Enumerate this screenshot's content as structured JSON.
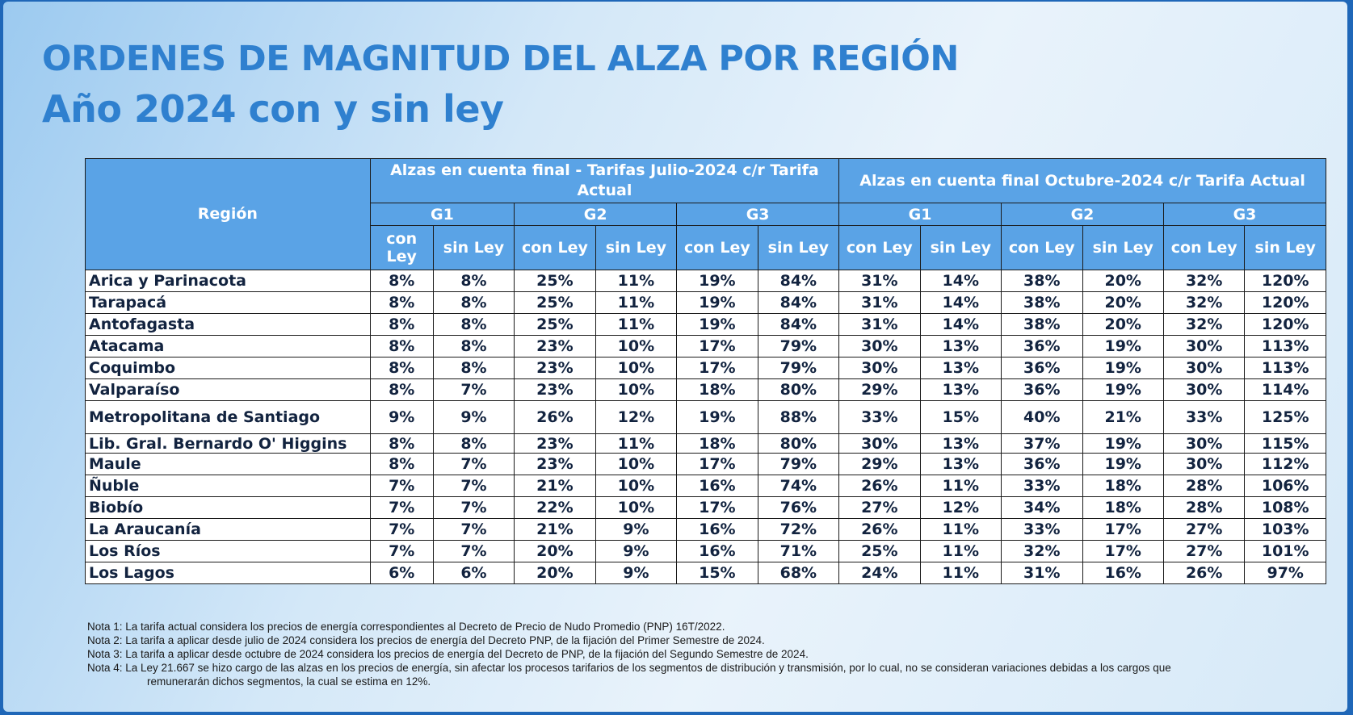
{
  "title": {
    "line1": "ORDENES DE MAGNITUD DEL ALZA POR REGIÓN",
    "line2": "Año 2024 con y sin ley"
  },
  "table": {
    "region_header": "Región",
    "group_july": "Alzas en cuenta final - Tarifas Julio-2024 c/r Tarifa Actual",
    "group_october": "Alzas en cuenta final Octubre-2024 c/r Tarifa Actual",
    "sub_groups": [
      "G1",
      "G2",
      "G3",
      "G1",
      "G2",
      "G3"
    ],
    "con_ley": "con Ley",
    "sin_ley": "sin Ley",
    "rows": [
      {
        "region": "Arica y Parinacota",
        "values": [
          "8%",
          "8%",
          "25%",
          "11%",
          "19%",
          "84%",
          "31%",
          "14%",
          "38%",
          "20%",
          "32%",
          "120%"
        ]
      },
      {
        "region": "Tarapacá",
        "values": [
          "8%",
          "8%",
          "25%",
          "11%",
          "19%",
          "84%",
          "31%",
          "14%",
          "38%",
          "20%",
          "32%",
          "120%"
        ]
      },
      {
        "region": "Antofagasta",
        "values": [
          "8%",
          "8%",
          "25%",
          "11%",
          "19%",
          "84%",
          "31%",
          "14%",
          "38%",
          "20%",
          "32%",
          "120%"
        ]
      },
      {
        "region": "Atacama",
        "values": [
          "8%",
          "8%",
          "23%",
          "10%",
          "17%",
          "79%",
          "30%",
          "13%",
          "36%",
          "19%",
          "30%",
          "113%"
        ]
      },
      {
        "region": "Coquimbo",
        "values": [
          "8%",
          "8%",
          "23%",
          "10%",
          "17%",
          "79%",
          "30%",
          "13%",
          "36%",
          "19%",
          "30%",
          "113%"
        ]
      },
      {
        "region": "Valparaíso",
        "values": [
          "8%",
          "7%",
          "23%",
          "10%",
          "18%",
          "80%",
          "29%",
          "13%",
          "36%",
          "19%",
          "30%",
          "114%"
        ]
      },
      {
        "region": "Metropolitana de Santiago",
        "values": [
          "9%",
          "9%",
          "26%",
          "12%",
          "19%",
          "88%",
          "33%",
          "15%",
          "40%",
          "21%",
          "33%",
          "125%"
        ]
      },
      {
        "region": "Lib. Gral. Bernardo O' Higgins",
        "values": [
          "8%",
          "8%",
          "23%",
          "11%",
          "18%",
          "80%",
          "30%",
          "13%",
          "37%",
          "19%",
          "30%",
          "115%"
        ]
      },
      {
        "region": "Maule",
        "values": [
          "8%",
          "7%",
          "23%",
          "10%",
          "17%",
          "79%",
          "29%",
          "13%",
          "36%",
          "19%",
          "30%",
          "112%"
        ]
      },
      {
        "region": "Ñuble",
        "values": [
          "7%",
          "7%",
          "21%",
          "10%",
          "16%",
          "74%",
          "26%",
          "11%",
          "33%",
          "18%",
          "28%",
          "106%"
        ]
      },
      {
        "region": "Biobío",
        "values": [
          "7%",
          "7%",
          "22%",
          "10%",
          "17%",
          "76%",
          "27%",
          "12%",
          "34%",
          "18%",
          "28%",
          "108%"
        ]
      },
      {
        "region": "La Araucanía",
        "values": [
          "7%",
          "7%",
          "21%",
          "9%",
          "16%",
          "72%",
          "26%",
          "11%",
          "33%",
          "17%",
          "27%",
          "103%"
        ]
      },
      {
        "region": "Los Ríos",
        "values": [
          "7%",
          "7%",
          "20%",
          "9%",
          "16%",
          "71%",
          "25%",
          "11%",
          "32%",
          "17%",
          "27%",
          "101%"
        ]
      },
      {
        "region": "Los Lagos",
        "values": [
          "6%",
          "6%",
          "20%",
          "9%",
          "15%",
          "68%",
          "24%",
          "11%",
          "31%",
          "16%",
          "26%",
          "97%"
        ]
      }
    ]
  },
  "notes": {
    "note1": "Nota 1: La tarifa actual considera los precios de energía correspondientes al Decreto de Precio de Nudo Promedio (PNP) 16T/2022.",
    "note2": "Nota 2: La tarifa a aplicar desde julio de 2024 considera los precios de energía del Decreto PNP, de la fijación del Primer Semestre de 2024.",
    "note3": "Nota 3: La tarifa a aplicar desde octubre de 2024 considera los precios de energía del Decreto de PNP, de la fijación del Segundo Semestre de 2024.",
    "note4": "Nota 4: La Ley 21.667 se hizo cargo de las alzas en los precios de energía, sin afectar los procesos tarifarios de los segmentos de distribución y transmisión, por lo cual, no se consideran variaciones debidas a los cargos que",
    "note4_cont": "remunerarán dichos segmentos, la cual se estima en 12%."
  }
}
